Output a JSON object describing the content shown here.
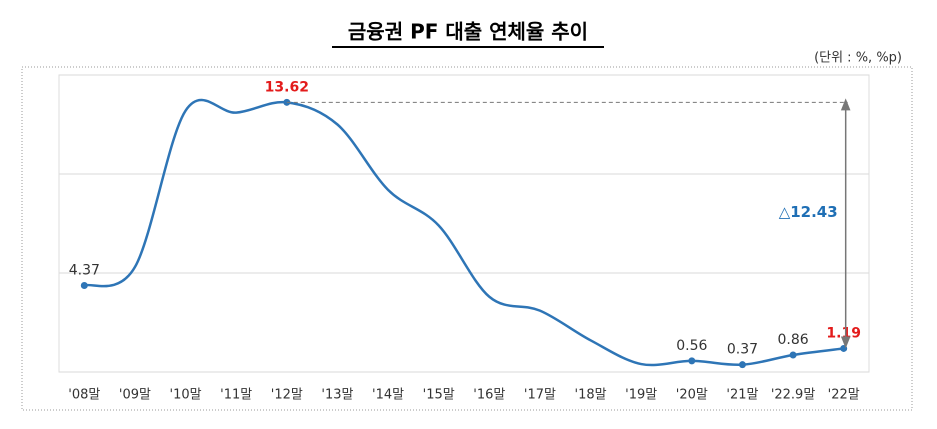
{
  "chart_data": {
    "type": "line",
    "title": "금융권 PF 대출 연체율 추이",
    "unit_note": "(단위 : %, %p)",
    "categories": [
      "'08말",
      "'09말",
      "'10말",
      "'11말",
      "'12말",
      "'13말",
      "'14말",
      "'15말",
      "'16말",
      "'17말",
      "'18말",
      "'19말",
      "'20말",
      "'21말",
      "'22.9말",
      "'22말"
    ],
    "series": [
      {
        "name": "연체율",
        "color": "#2e75b6",
        "values": [
          4.37,
          5.3,
          13.2,
          13.1,
          13.62,
          12.5,
          9.2,
          7.4,
          3.8,
          3.1,
          1.6,
          0.4,
          0.56,
          0.37,
          0.86,
          1.19
        ],
        "value_labels": [
          "4.37",
          null,
          null,
          null,
          "13.62",
          null,
          null,
          null,
          null,
          null,
          null,
          null,
          "0.56",
          "0.37",
          "0.86",
          "1.19"
        ]
      }
    ],
    "highlight_color": "#e31b1b",
    "annotation": "△12.43",
    "annotation_color": "#1f6fb5",
    "ylim": [
      0,
      15
    ],
    "yticks": [
      0,
      5,
      10,
      15
    ],
    "grid": true
  }
}
